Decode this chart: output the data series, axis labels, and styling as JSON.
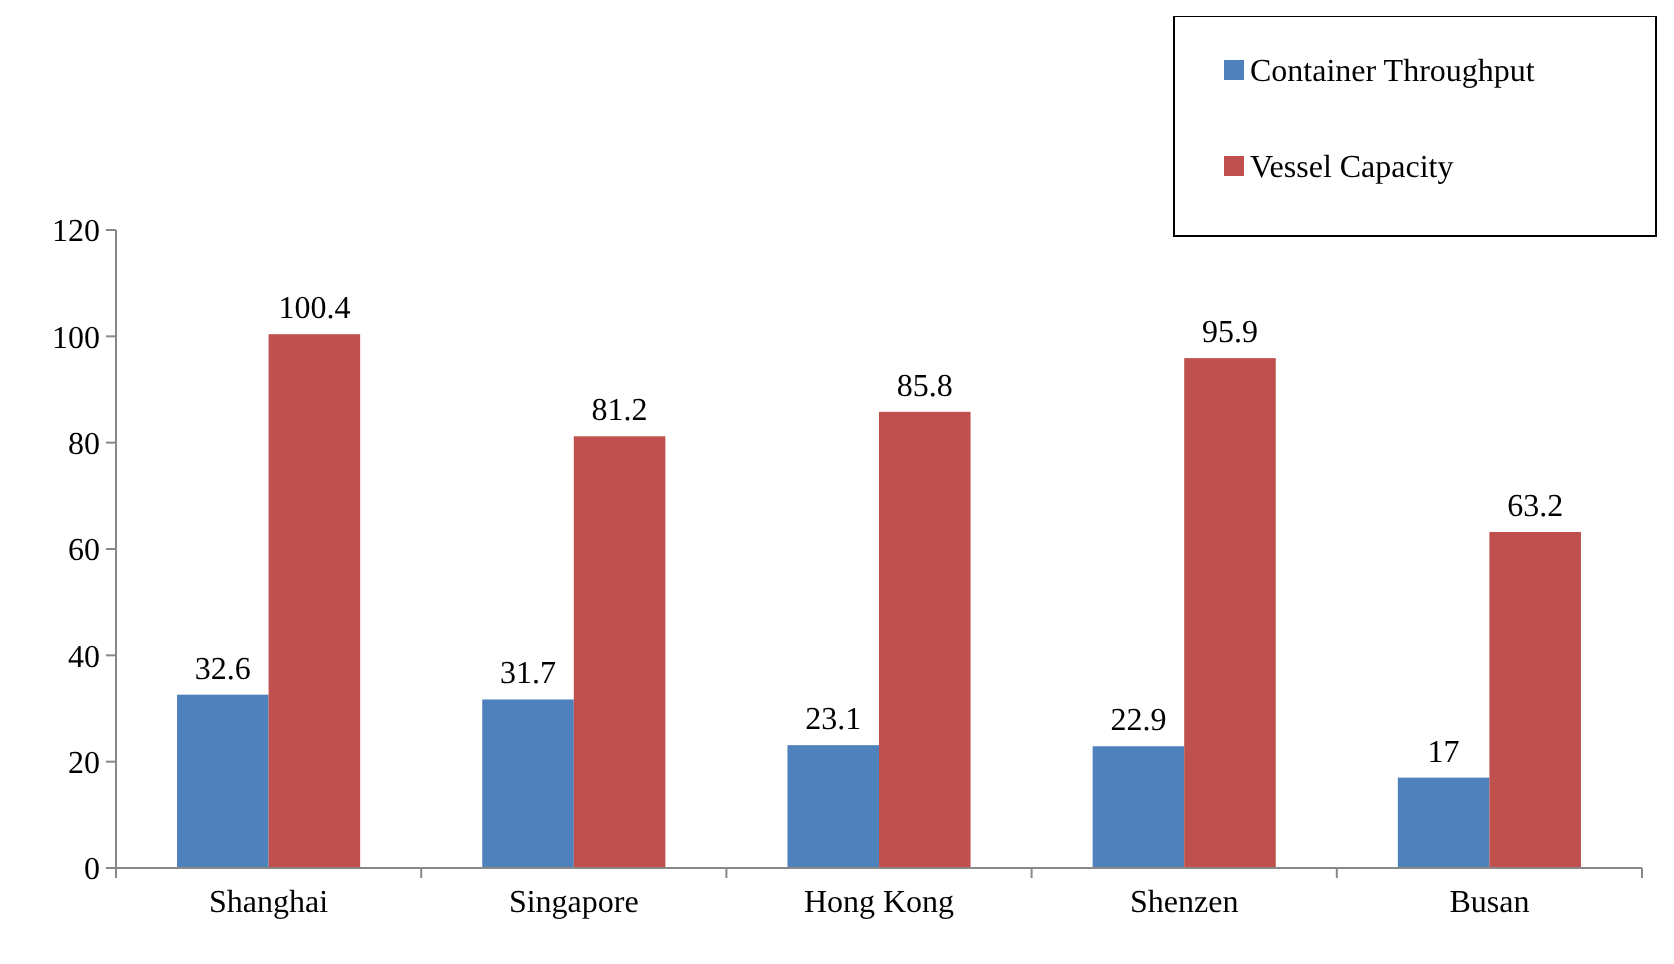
{
  "chart_data": {
    "type": "bar",
    "categories": [
      "Shanghai",
      "Singapore",
      "Hong Kong",
      "Shenzen",
      "Busan"
    ],
    "series": [
      {
        "name": "Container Throughput",
        "color": "#4f81bd",
        "values": [
          32.6,
          31.7,
          23.1,
          22.9,
          17
        ]
      },
      {
        "name": "Vessel Capacity",
        "color": "#c0504d",
        "values": [
          100.4,
          81.2,
          85.8,
          95.9,
          63.2
        ]
      }
    ],
    "ylim": [
      0,
      120
    ],
    "yticks": [
      0,
      20,
      40,
      60,
      80,
      100,
      120
    ],
    "data_labels": true,
    "legend": "top right",
    "grid": false
  }
}
